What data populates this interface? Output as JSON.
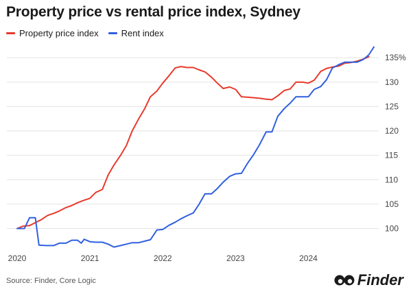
{
  "chart_data": {
    "type": "line",
    "title": "Property price vs rental price index, Sydney",
    "xlabel": "",
    "ylabel": "",
    "x_ticks": [
      "2020",
      "2021",
      "2022",
      "2023",
      "2024"
    ],
    "x_tick_values": [
      2020,
      2021,
      2022,
      2023,
      2024
    ],
    "y_ticks": [
      "100",
      "105",
      "110",
      "115",
      "120",
      "125",
      "130",
      "135%"
    ],
    "y_tick_values": [
      100,
      105,
      110,
      115,
      120,
      125,
      130,
      135
    ],
    "xlim": [
      2020,
      2024.9
    ],
    "ylim": [
      96,
      137
    ],
    "grid": "horizontal",
    "legend_position": "top-left",
    "series": [
      {
        "name": "Property price index",
        "color": "#e8392b",
        "x": [
          2020,
          2020.08,
          2020.17,
          2020.25,
          2020.33,
          2020.42,
          2020.5,
          2020.58,
          2020.67,
          2020.75,
          2020.83,
          2020.92,
          2021,
          2021.08,
          2021.17,
          2021.25,
          2021.33,
          2021.42,
          2021.5,
          2021.58,
          2021.67,
          2021.75,
          2021.83,
          2021.92,
          2022,
          2022.08,
          2022.17,
          2022.25,
          2022.33,
          2022.42,
          2022.5,
          2022.58,
          2022.67,
          2022.75,
          2022.83,
          2022.92,
          2023,
          2023.08,
          2023.17,
          2023.25,
          2023.33,
          2023.42,
          2023.5,
          2023.58,
          2023.67,
          2023.75,
          2023.83,
          2023.92,
          2024,
          2024.08,
          2024.17,
          2024.25,
          2024.33,
          2024.42,
          2024.5,
          2024.58,
          2024.67,
          2024.75,
          2024.83
        ],
        "values": [
          100,
          100.5,
          100.6,
          101.2,
          101.8,
          102.7,
          103.1,
          103.6,
          104.3,
          104.7,
          105.3,
          105.8,
          106.2,
          107.4,
          108.0,
          111.0,
          113.0,
          115.0,
          117.0,
          120.0,
          122.5,
          124.5,
          127.0,
          128.2,
          129.8,
          131.2,
          132.9,
          133.2,
          133.0,
          133.0,
          132.5,
          132.1,
          131.0,
          129.8,
          128.7,
          129.0,
          128.5,
          127.0,
          126.9,
          126.8,
          126.7,
          126.5,
          126.4,
          127.2,
          128.3,
          128.6,
          130.0,
          130.0,
          129.8,
          130.4,
          132.2,
          132.8,
          133.1,
          133.3,
          133.9,
          134.0,
          134.3,
          134.7,
          135.2
        ]
      },
      {
        "name": "Rent index",
        "color": "#2f5fe0",
        "x": [
          2020,
          2020.08,
          2020.1,
          2020.17,
          2020.25,
          2020.3,
          2020.4,
          2020.5,
          2020.58,
          2020.67,
          2020.75,
          2020.83,
          2020.88,
          2020.92,
          2021,
          2021.08,
          2021.17,
          2021.25,
          2021.33,
          2021.42,
          2021.5,
          2021.58,
          2021.67,
          2021.75,
          2021.83,
          2021.92,
          2022,
          2022.08,
          2022.17,
          2022.25,
          2022.33,
          2022.42,
          2022.5,
          2022.58,
          2022.67,
          2022.75,
          2022.83,
          2022.92,
          2023,
          2023.08,
          2023.17,
          2023.25,
          2023.33,
          2023.42,
          2023.5,
          2023.58,
          2023.67,
          2023.75,
          2023.83,
          2023.92,
          2024,
          2024.08,
          2024.17,
          2024.25,
          2024.33,
          2024.42,
          2024.5,
          2024.58,
          2024.67,
          2024.75,
          2024.83,
          2024.9
        ],
        "values": [
          100,
          100,
          100,
          102.2,
          102.2,
          96.6,
          96.5,
          96.5,
          97.0,
          97.0,
          97.6,
          97.6,
          97.0,
          97.8,
          97.3,
          97.2,
          97.2,
          96.8,
          96.2,
          96.5,
          96.8,
          97.1,
          97.1,
          97.4,
          97.7,
          99.7,
          99.8,
          100.6,
          101.3,
          102.0,
          102.6,
          103.2,
          105.0,
          107.1,
          107.1,
          108.2,
          109.5,
          110.7,
          111.2,
          111.3,
          113.5,
          115.2,
          117.2,
          119.8,
          119.8,
          123.0,
          124.6,
          125.7,
          127.0,
          127.0,
          127.0,
          128.5,
          129.1,
          130.5,
          132.9,
          133.6,
          134.1,
          134.1,
          134.1,
          134.6,
          135.6,
          137.2
        ]
      }
    ],
    "source": "Source: Finder, Core Logic"
  },
  "brand": {
    "name": "Finder",
    "logo_icon": "eyes-icon"
  }
}
